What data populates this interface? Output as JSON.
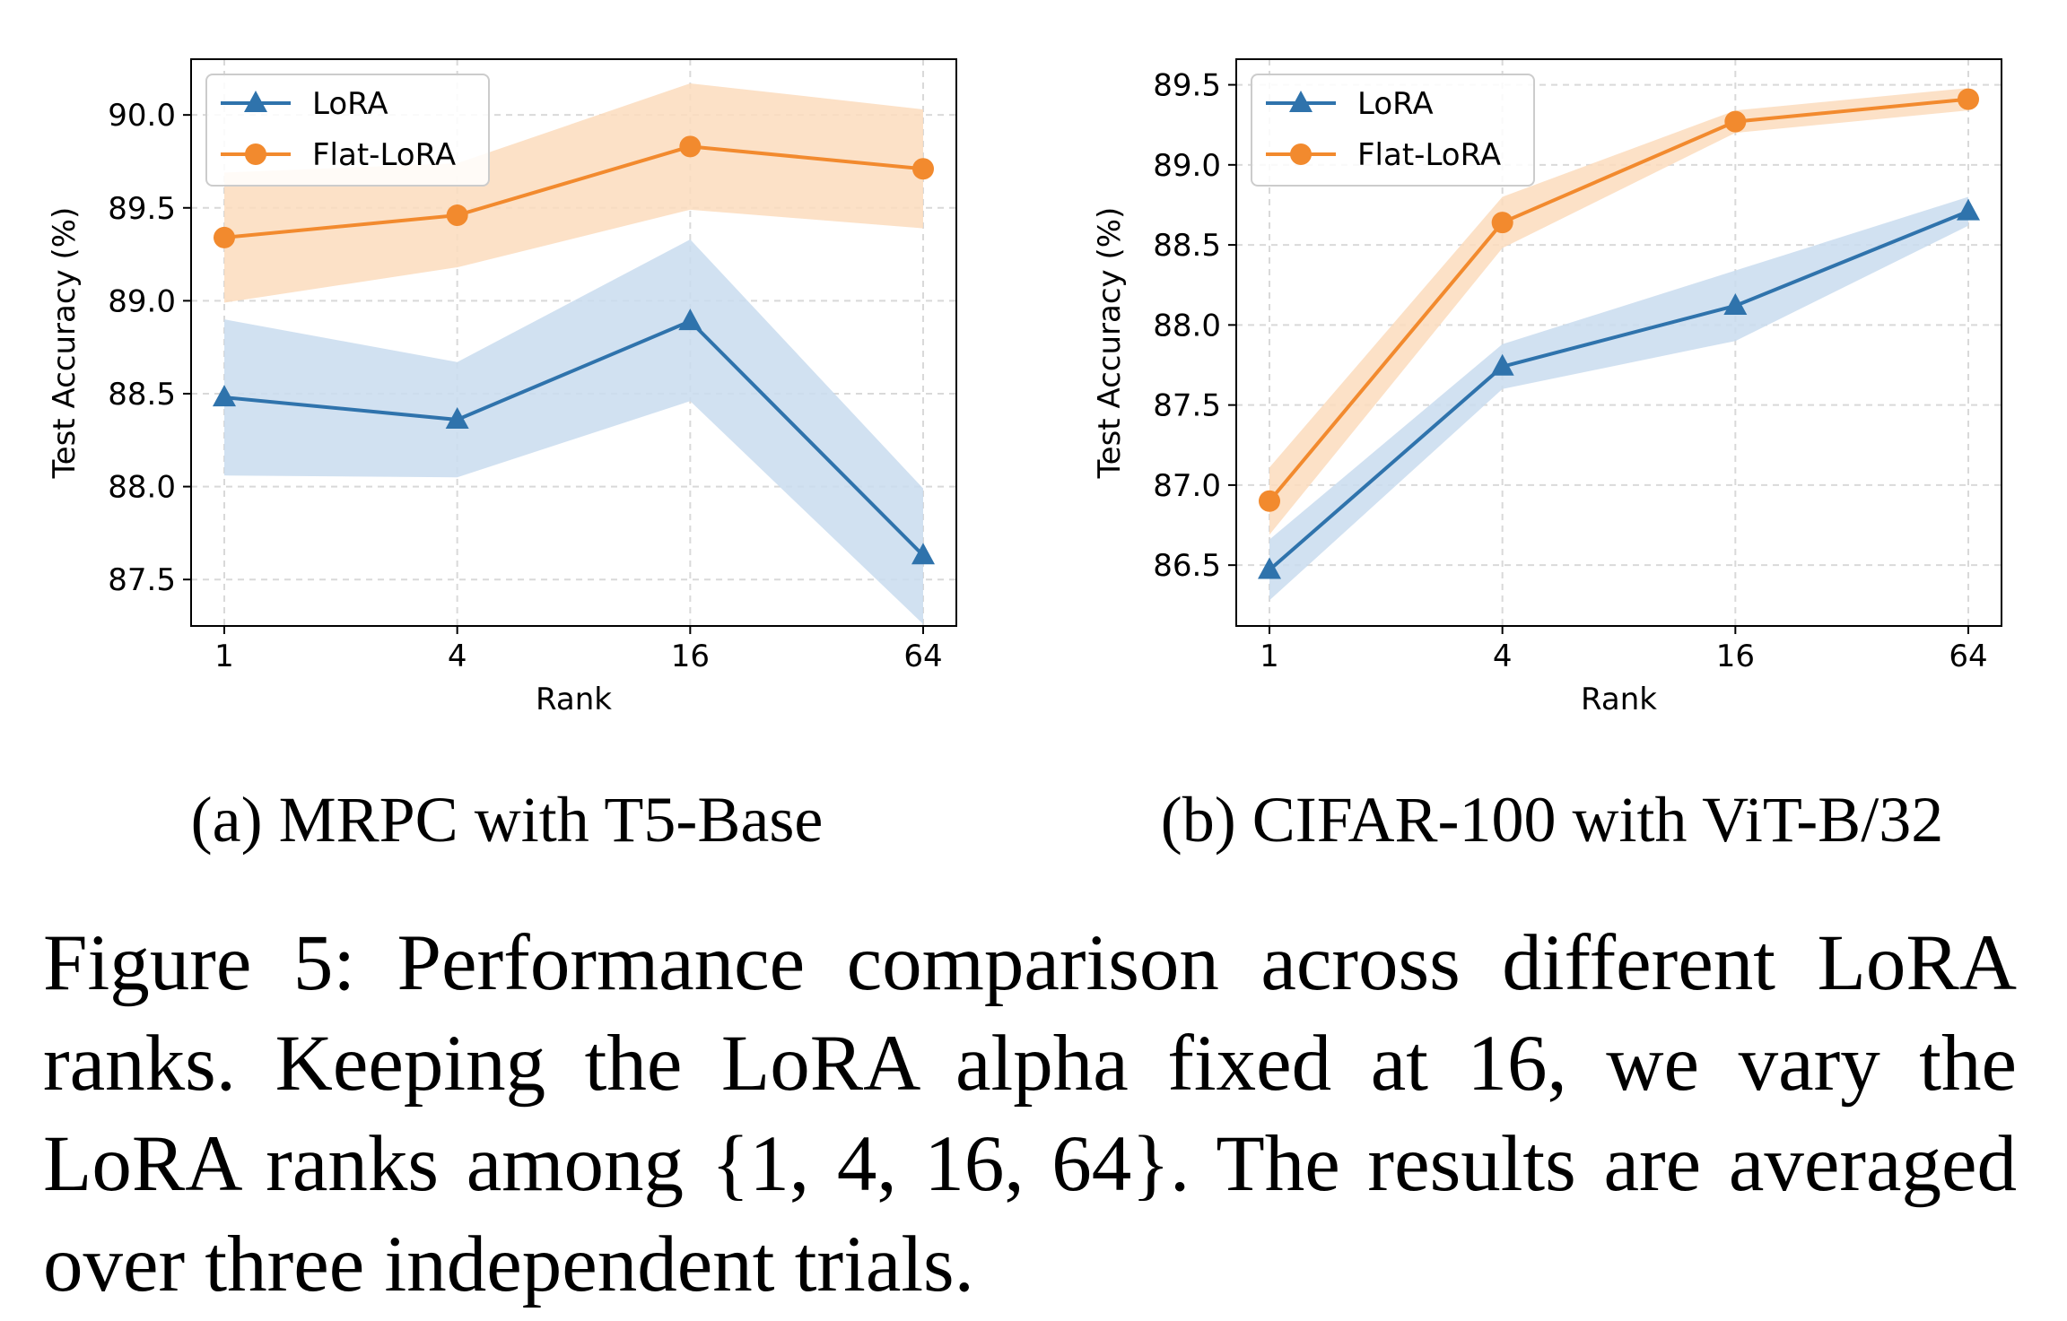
{
  "colors": {
    "lora": "#2f73ac",
    "flat": "#f28a2e",
    "lora_band": "#c9dcee",
    "flat_band": "#fbdcbd",
    "grid": "#d9d9d9"
  },
  "chart_data": [
    {
      "type": "line",
      "subcaption": "(a) MRPC with T5-Base",
      "xlabel": "Rank",
      "ylabel": "Test Accuracy (%)",
      "x": [
        "1",
        "4",
        "16",
        "64"
      ],
      "ylim": [
        87.25,
        90.3
      ],
      "yticks": [
        "87.5",
        "88.0",
        "88.5",
        "89.0",
        "89.5",
        "90.0"
      ],
      "grid": true,
      "legend_position": "top-left",
      "series": [
        {
          "name": "LoRA",
          "marker": "triangle",
          "values": [
            88.48,
            88.36,
            88.89,
            87.63
          ],
          "lower": [
            88.06,
            88.05,
            88.46,
            87.26
          ],
          "upper": [
            88.9,
            88.67,
            89.33,
            87.99
          ]
        },
        {
          "name": "Flat-LoRA",
          "marker": "circle",
          "values": [
            89.34,
            89.46,
            89.83,
            89.71
          ],
          "lower": [
            88.99,
            89.18,
            89.49,
            89.39
          ],
          "upper": [
            89.69,
            89.74,
            90.17,
            90.03
          ]
        }
      ]
    },
    {
      "type": "line",
      "subcaption": "(b) CIFAR-100 with ViT-B/32",
      "xlabel": "Rank",
      "ylabel": "Test Accuracy (%)",
      "x": [
        "1",
        "4",
        "16",
        "64"
      ],
      "ylim": [
        86.12,
        89.66
      ],
      "yticks": [
        "86.5",
        "87.0",
        "87.5",
        "88.0",
        "88.5",
        "89.0",
        "89.5"
      ],
      "grid": true,
      "legend_position": "top-left",
      "series": [
        {
          "name": "LoRA",
          "marker": "triangle",
          "values": [
            86.47,
            87.74,
            88.12,
            88.71
          ],
          "lower": [
            86.28,
            87.6,
            87.9,
            88.62
          ],
          "upper": [
            86.66,
            87.88,
            88.34,
            88.8
          ]
        },
        {
          "name": "Flat-LoRA",
          "marker": "circle",
          "values": [
            86.9,
            88.64,
            89.27,
            89.41
          ],
          "lower": [
            86.69,
            88.48,
            89.2,
            89.34
          ],
          "upper": [
            87.11,
            88.8,
            89.34,
            89.48
          ]
        }
      ]
    }
  ],
  "caption": "Figure 5: Performance comparison across different LoRA ranks.  Keeping the LoRA alpha fixed at 16, we vary the LoRA ranks among {1, 4, 16, 64}. The results are averaged over three independent trials."
}
